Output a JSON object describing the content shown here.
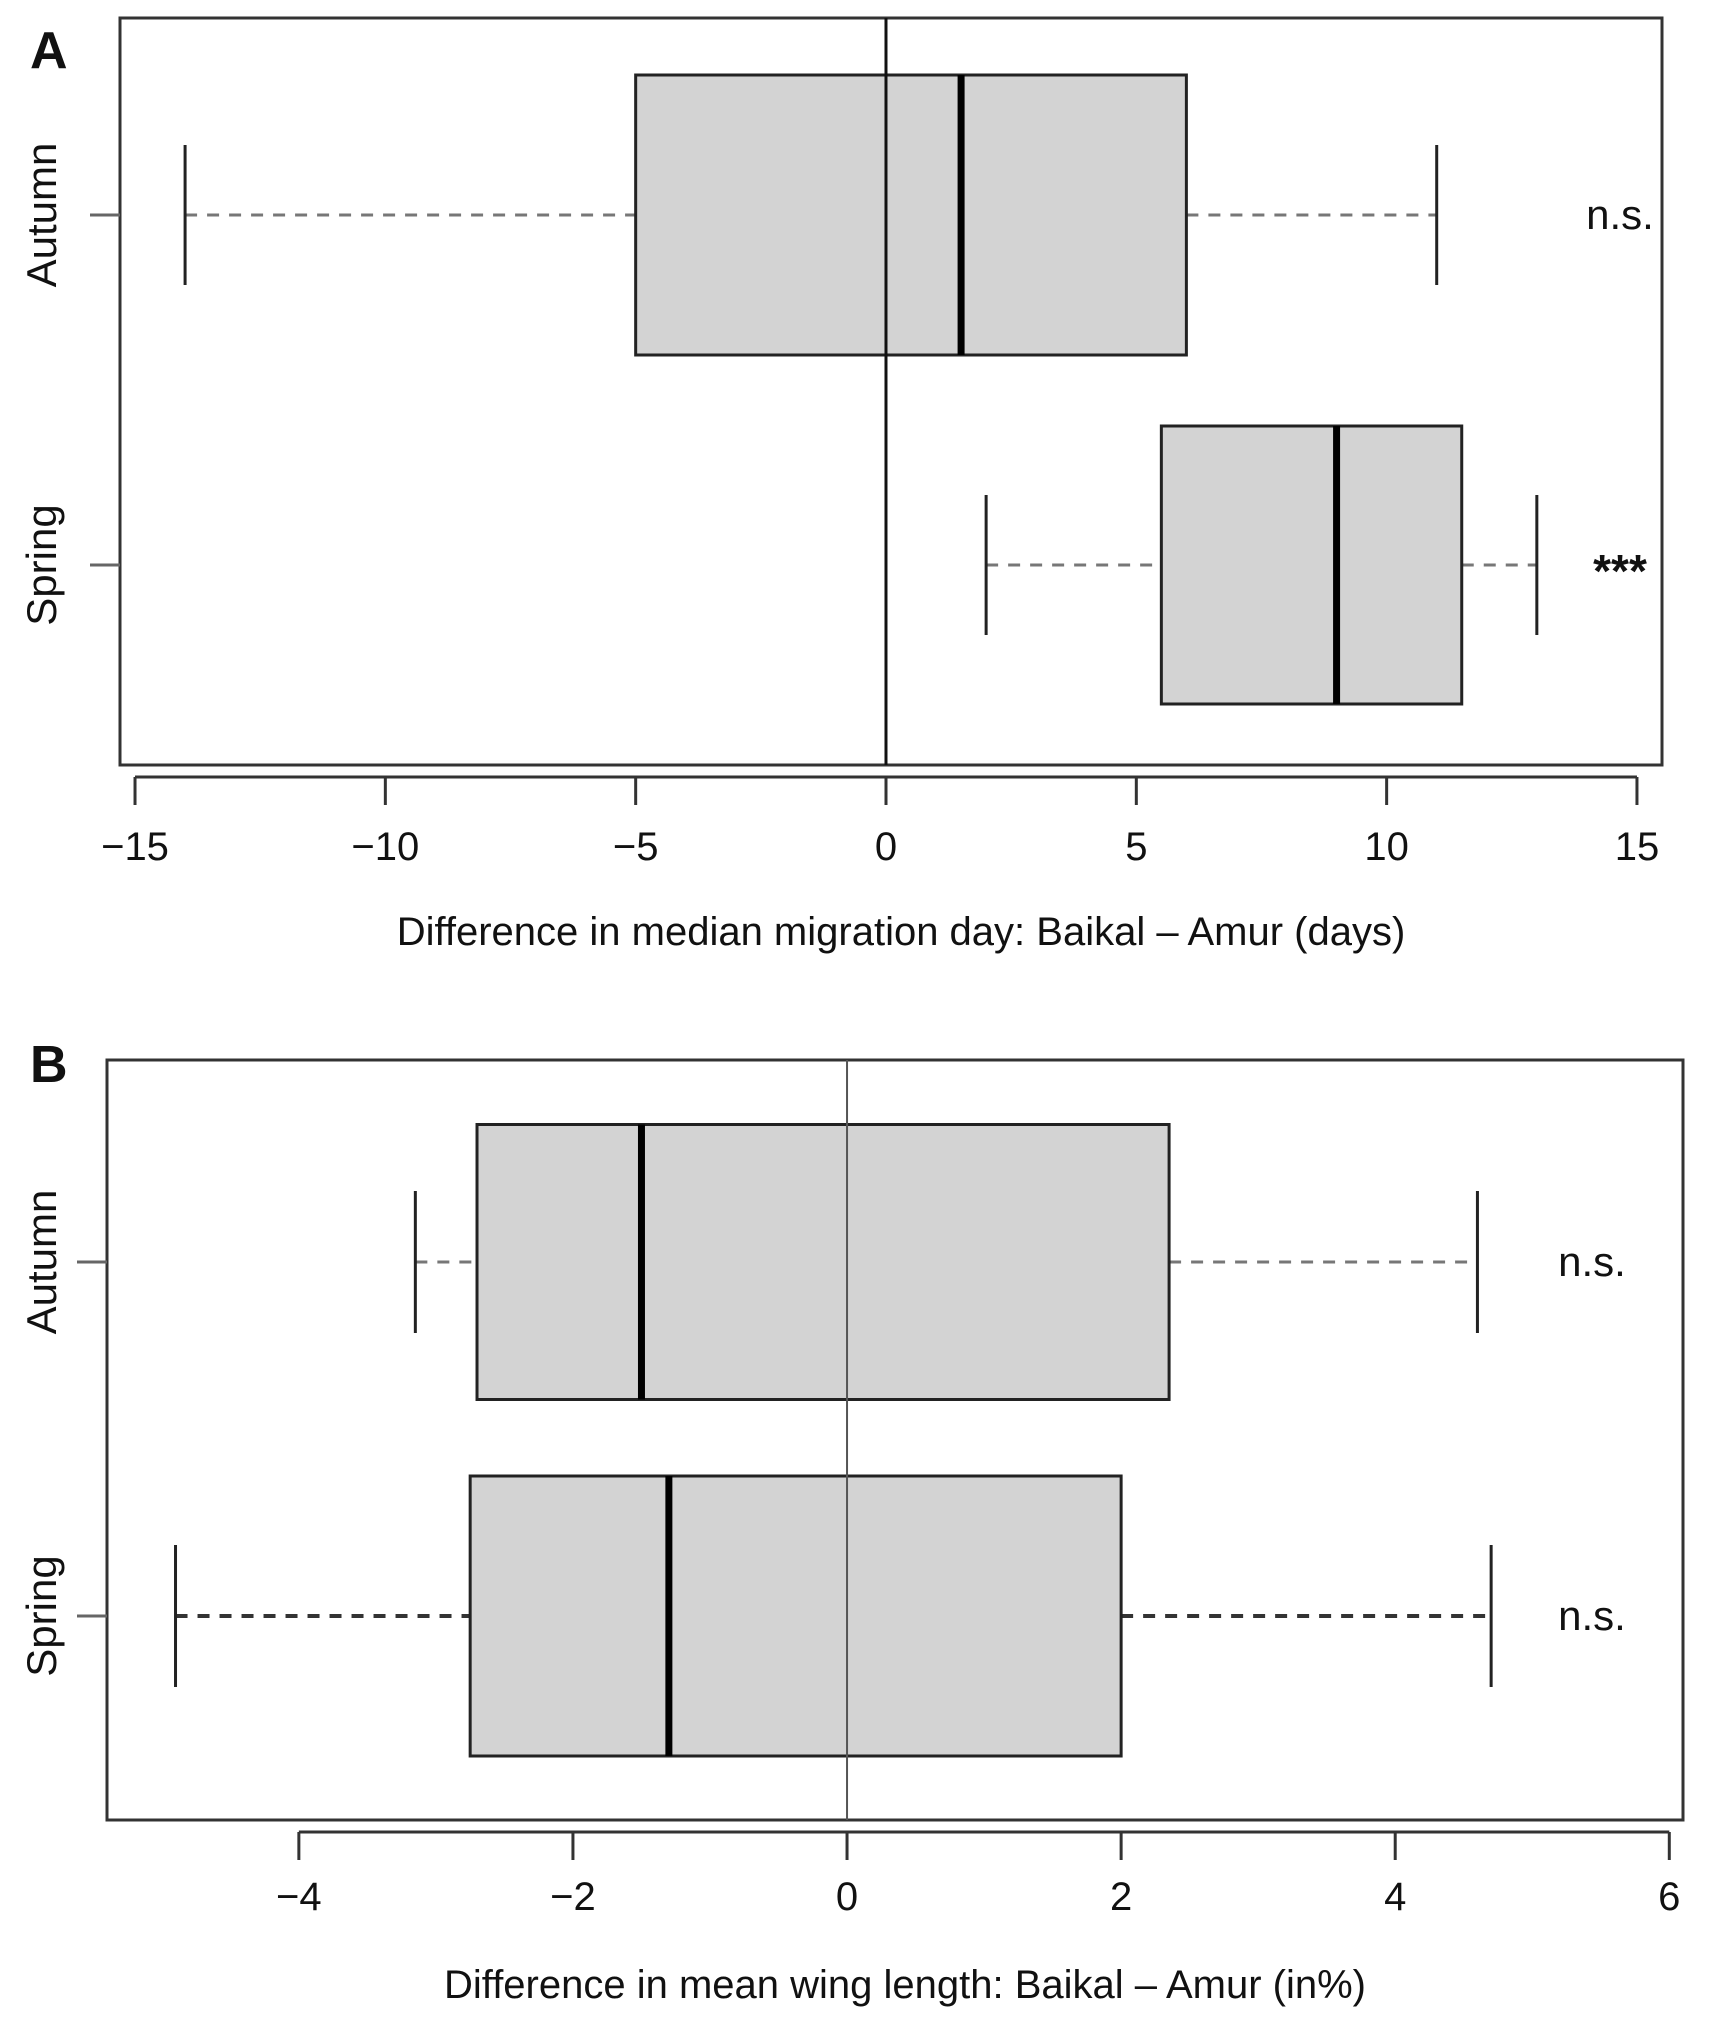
{
  "chart_data": [
    {
      "panel_label": "A",
      "type": "boxplot",
      "orientation": "horizontal",
      "xlabel": "Difference in median migration day: Baikal – Amur (days)",
      "xlim": [
        -15.3,
        15.5
      ],
      "ticks": [
        {
          "value": -15,
          "label": "−15"
        },
        {
          "value": -10,
          "label": "−10"
        },
        {
          "value": -5,
          "label": "−5"
        },
        {
          "value": 0,
          "label": "0"
        },
        {
          "value": 5,
          "label": "5"
        },
        {
          "value": 10,
          "label": "10"
        },
        {
          "value": 15,
          "label": "15"
        }
      ],
      "reference_line": 0,
      "categories": [
        "Autumn",
        "Spring"
      ],
      "boxes": [
        {
          "category": "Autumn",
          "whisker_low": -14,
          "q1": -5,
          "median": 1.5,
          "q3": 6,
          "whisker_high": 11,
          "significance": "n.s."
        },
        {
          "category": "Spring",
          "whisker_low": 2,
          "q1": 5.5,
          "median": 9,
          "q3": 11.5,
          "whisker_high": 13,
          "significance": "***"
        }
      ],
      "box_fill": "#d3d3d3"
    },
    {
      "panel_label": "B",
      "type": "boxplot",
      "orientation": "horizontal",
      "xlabel": "Difference in mean wing length: Baikal – Amur (in%)",
      "xlim": [
        -5.4,
        6.1
      ],
      "ticks": [
        {
          "value": -4,
          "label": "−4"
        },
        {
          "value": -2,
          "label": "−2"
        },
        {
          "value": 0,
          "label": "0"
        },
        {
          "value": 2,
          "label": "2"
        },
        {
          "value": 4,
          "label": "4"
        },
        {
          "value": 6,
          "label": "6"
        }
      ],
      "reference_line": 0,
      "categories": [
        "Autumn",
        "Spring"
      ],
      "boxes": [
        {
          "category": "Autumn",
          "whisker_low": -3.15,
          "q1": -2.7,
          "median": -1.5,
          "q3": 2.35,
          "whisker_high": 4.6,
          "significance": "n.s."
        },
        {
          "category": "Spring",
          "whisker_low": -4.9,
          "q1": -2.75,
          "median": -1.3,
          "q3": 2.0,
          "whisker_high": 4.7,
          "significance": "n.s."
        }
      ],
      "box_fill": "#d3d3d3"
    }
  ]
}
